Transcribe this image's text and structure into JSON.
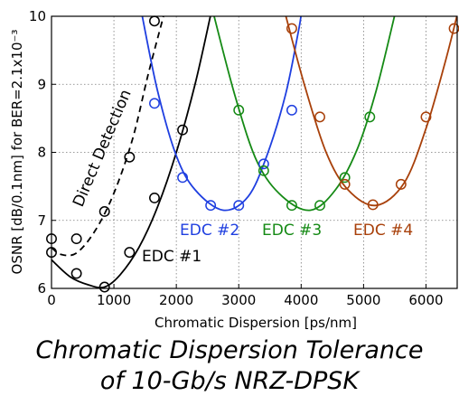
{
  "caption": {
    "line1": "Chromatic Dispersion Tolerance",
    "line2": "of 10-Gb/s NRZ-DPSK"
  },
  "chart_data": {
    "type": "line",
    "xlabel": "Chromatic Dispersion [ps/nm]",
    "ylabel": "OSNR [dB/0.1nm] for BER=2.1x10⁻³",
    "xlim": [
      0,
      6500
    ],
    "ylim": [
      6,
      10
    ],
    "x_ticks": [
      0,
      1000,
      2000,
      3000,
      4000,
      5000,
      6000
    ],
    "y_ticks": [
      6,
      7,
      8,
      9,
      10
    ],
    "grid": true,
    "series": [
      {
        "name": "Direct Detection",
        "color": "#000000",
        "line_style": "dashed",
        "points": [
          [
            0,
            6.73
          ],
          [
            400,
            6.73
          ],
          [
            850,
            7.13
          ],
          [
            1250,
            7.93
          ],
          [
            1650,
            9.93
          ]
        ],
        "curve": [
          [
            0,
            6.6
          ],
          [
            150,
            6.5
          ],
          [
            400,
            6.52
          ],
          [
            700,
            6.85
          ],
          [
            1000,
            7.4
          ],
          [
            1300,
            8.2
          ],
          [
            1550,
            9.15
          ],
          [
            1800,
            10.02
          ]
        ]
      },
      {
        "name": "EDC #1",
        "color": "#000000",
        "line_style": "solid",
        "points": [
          [
            0,
            6.53
          ],
          [
            400,
            6.22
          ],
          [
            850,
            6.02
          ],
          [
            1250,
            6.53
          ],
          [
            1650,
            7.33
          ],
          [
            2100,
            8.33
          ]
        ],
        "curve": [
          [
            0,
            6.42
          ],
          [
            300,
            6.17
          ],
          [
            600,
            6.05
          ],
          [
            850,
            6.02
          ],
          [
            1100,
            6.2
          ],
          [
            1400,
            6.6
          ],
          [
            1700,
            7.2
          ],
          [
            2000,
            8.0
          ],
          [
            2300,
            9.0
          ],
          [
            2550,
            10.02
          ]
        ]
      },
      {
        "name": "EDC #2",
        "color": "#1f3fe0",
        "line_style": "solid",
        "points": [
          [
            1650,
            8.72
          ],
          [
            2100,
            7.63
          ],
          [
            2550,
            7.22
          ],
          [
            3000,
            7.22
          ],
          [
            3400,
            7.83
          ],
          [
            3850,
            8.62
          ]
        ],
        "curve": [
          [
            1450,
            10.02
          ],
          [
            1700,
            8.9
          ],
          [
            2000,
            7.95
          ],
          [
            2300,
            7.45
          ],
          [
            2750,
            7.15
          ],
          [
            3150,
            7.35
          ],
          [
            3450,
            7.95
          ],
          [
            3750,
            8.85
          ],
          [
            3950,
            9.75
          ],
          [
            4000,
            10.02
          ]
        ]
      },
      {
        "name": "EDC #3",
        "color": "#158a15",
        "line_style": "solid",
        "points": [
          [
            3000,
            8.62
          ],
          [
            3400,
            7.73
          ],
          [
            3850,
            7.22
          ],
          [
            4300,
            7.22
          ],
          [
            4700,
            7.63
          ],
          [
            5100,
            8.52
          ]
        ],
        "curve": [
          [
            2600,
            10.02
          ],
          [
            2950,
            8.8
          ],
          [
            3300,
            7.85
          ],
          [
            3700,
            7.35
          ],
          [
            4150,
            7.15
          ],
          [
            4550,
            7.45
          ],
          [
            4900,
            8.05
          ],
          [
            5200,
            8.9
          ],
          [
            5500,
            10.02
          ]
        ]
      },
      {
        "name": "EDC #4",
        "color": "#a8400a",
        "line_style": "solid",
        "points": [
          [
            3850,
            9.82
          ],
          [
            4300,
            8.52
          ],
          [
            4700,
            7.53
          ],
          [
            5150,
            7.23
          ],
          [
            5600,
            7.53
          ],
          [
            6000,
            8.52
          ],
          [
            6450,
            9.82
          ]
        ],
        "curve": [
          [
            3750,
            10.02
          ],
          [
            4050,
            9.0
          ],
          [
            4400,
            8.0
          ],
          [
            4750,
            7.45
          ],
          [
            5200,
            7.22
          ],
          [
            5650,
            7.55
          ],
          [
            6000,
            8.35
          ],
          [
            6300,
            9.3
          ],
          [
            6500,
            10.02
          ]
        ]
      }
    ]
  }
}
